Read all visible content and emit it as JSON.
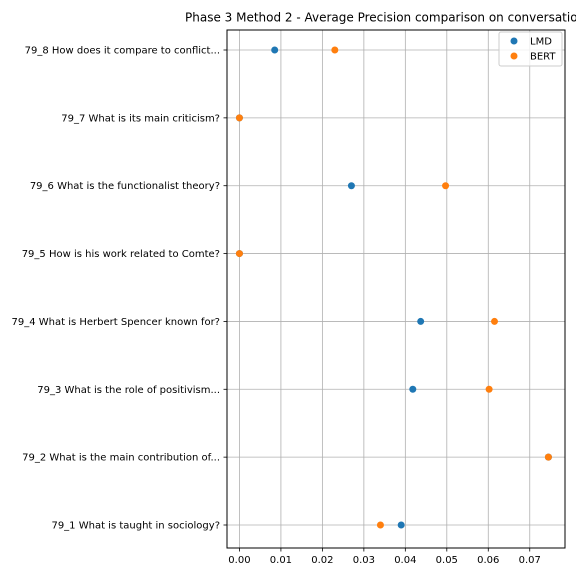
{
  "chart_data": {
    "type": "scatter",
    "title": "Phase 3 Method 2 - Average Precision comparison on conversation",
    "xlabel": "",
    "ylabel": "",
    "xlim": [
      -0.003,
      0.0785
    ],
    "xticks": [
      0.0,
      0.01,
      0.02,
      0.03,
      0.04,
      0.05,
      0.06,
      0.07
    ],
    "xtick_labels": [
      "0.00",
      "0.01",
      "0.02",
      "0.03",
      "0.04",
      "0.05",
      "0.06",
      "0.07"
    ],
    "categories": [
      "79_1 What is taught in sociology?",
      "79_2 What is the main contribution of...",
      "79_3 What is the role of positivism...",
      "79_4 What is Herbert Spencer known for?",
      "79_5 How is his work related to Comte?",
      "79_6 What is the functionalist theory?",
      "79_7 What is its main criticism?",
      "79_8 How does it compare to conflict..."
    ],
    "series": [
      {
        "name": "LMD",
        "color": "#1f77b4",
        "values": [
          0.039,
          0.0745,
          0.0418,
          0.0437,
          0.0,
          0.027,
          0.0,
          0.0085
        ]
      },
      {
        "name": "BERT",
        "color": "#ff7f0e",
        "values": [
          0.034,
          0.0745,
          0.0602,
          0.0615,
          0.0,
          0.0497,
          0.0,
          0.023
        ]
      }
    ],
    "grid": true,
    "legend_position": "top-right"
  }
}
